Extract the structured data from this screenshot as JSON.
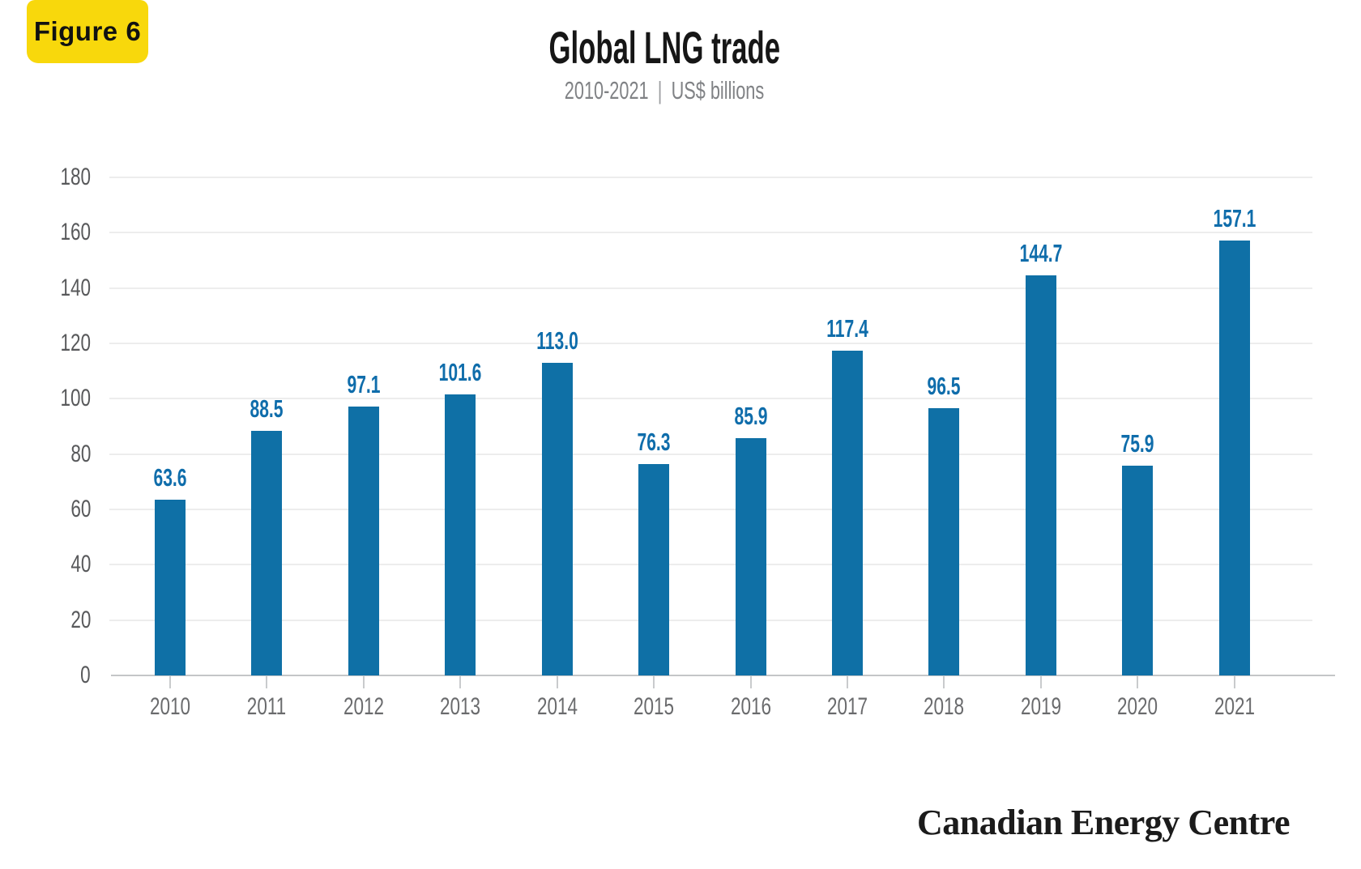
{
  "figure_badge": {
    "label": "Figure 6",
    "background": "#F8D80C"
  },
  "header": {
    "title": "Global LNG trade",
    "subtitle_range": "2010-2021",
    "subtitle_separator": "|",
    "subtitle_unit": "US$ billions"
  },
  "footer": {
    "brand": "Canadian Energy Centre"
  },
  "colors": {
    "bar": "#0F70A6",
    "value_label": "#0F6DAB",
    "gridline": "#EDEDED",
    "axis_line": "#C4C6C8",
    "y_tick_label": "#58595B",
    "x_tick_label": "#6A6B6D",
    "badge_yellow": "#F8D80C"
  },
  "chart_data": {
    "type": "bar",
    "title": "Global LNG trade",
    "subtitle": "2010-2021 | US$ billions",
    "unit": "US$ billions",
    "categories": [
      "2010",
      "2011",
      "2012",
      "2013",
      "2014",
      "2015",
      "2016",
      "2017",
      "2018",
      "2019",
      "2020",
      "2021"
    ],
    "values": [
      63.6,
      88.5,
      97.1,
      101.6,
      113.0,
      76.3,
      85.9,
      117.4,
      96.5,
      144.7,
      75.9,
      157.1
    ],
    "value_labels": [
      "63.6",
      "88.5",
      "97.1",
      "101.6",
      "113.0",
      "76.3",
      "85.9",
      "117.4",
      "96.5",
      "144.7",
      "75.9",
      "157.1"
    ],
    "ylim": [
      0,
      180
    ],
    "ytick_step": 20,
    "ytick_labels": [
      "0",
      "20",
      "40",
      "60",
      "80",
      "100",
      "120",
      "140",
      "160",
      "180"
    ],
    "grid": true,
    "legend": false
  }
}
